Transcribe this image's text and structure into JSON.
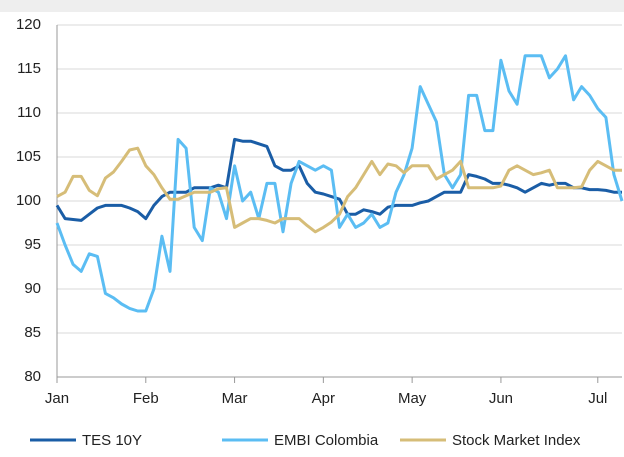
{
  "chart_data": {
    "type": "line",
    "categories": [
      "Jan",
      null,
      null,
      null,
      null,
      null,
      null,
      null,
      null,
      null,
      null,
      "Feb",
      null,
      null,
      null,
      null,
      null,
      null,
      null,
      null,
      null,
      null,
      "Mar",
      null,
      null,
      null,
      null,
      null,
      null,
      null,
      null,
      null,
      null,
      "Apr",
      null,
      null,
      null,
      null,
      null,
      null,
      null,
      null,
      null,
      null,
      "May",
      null,
      null,
      null,
      null,
      null,
      null,
      null,
      null,
      null,
      null,
      "Jun",
      null,
      null,
      null,
      null,
      null,
      null,
      null,
      null,
      null,
      null,
      null,
      "Jul",
      null,
      null,
      null
    ],
    "series": [
      {
        "name": "TES 10Y",
        "color": "#1a5da6",
        "values": [
          99.5,
          98,
          97.9,
          97.8,
          98.5,
          99.2,
          99.5,
          99.5,
          99.5,
          99.2,
          98.8,
          98,
          99.5,
          100.5,
          101,
          101,
          101,
          101.5,
          101.5,
          101.5,
          101.8,
          101.5,
          107,
          106.8,
          106.8,
          106.5,
          106.2,
          104,
          103.5,
          103.5,
          104,
          102,
          101,
          100.8,
          100.5,
          100.2,
          98.5,
          98.5,
          99,
          98.8,
          98.5,
          99.3,
          99.5,
          99.5,
          99.5,
          99.8,
          100,
          100.5,
          101,
          101,
          101,
          103,
          102.8,
          102.5,
          102,
          102,
          101.8,
          101.5,
          101,
          101.5,
          102,
          101.8,
          102,
          102,
          101.5,
          101.5,
          101.3,
          101.3,
          101.2,
          101,
          101
        ]
      },
      {
        "name": "EMBI Colombia",
        "color": "#5bbdf3",
        "values": [
          97.5,
          95,
          92.8,
          92,
          94,
          93.7,
          89.5,
          89,
          88.3,
          87.8,
          87.5,
          87.5,
          90,
          96,
          92,
          107,
          106,
          97,
          95.5,
          101.5,
          101,
          98,
          104,
          100,
          101,
          98,
          102,
          102,
          96.5,
          102,
          104.5,
          104,
          103.5,
          104,
          103.5,
          97,
          98.5,
          97,
          97.5,
          98.5,
          97,
          97.5,
          101,
          103,
          106,
          113,
          111,
          109,
          103,
          101.5,
          103,
          112,
          112,
          108,
          108,
          116,
          112.5,
          111,
          116.5,
          116.5,
          116.5,
          114,
          115,
          116.5,
          111.5,
          113,
          112,
          110.5,
          109.5,
          103,
          100
        ]
      },
      {
        "name": "Stock Market Index",
        "color": "#d6bd78",
        "values": [
          100.5,
          101,
          102.8,
          102.8,
          101.2,
          100.6,
          102.6,
          103.3,
          104.5,
          105.8,
          106,
          104,
          103,
          101.5,
          100.2,
          100.2,
          100.6,
          101,
          101,
          101,
          101.4,
          101.5,
          97,
          97.5,
          98,
          98,
          97.8,
          97.5,
          98,
          98,
          98,
          97.2,
          96.5,
          97,
          97.6,
          98.5,
          100.5,
          101.5,
          103,
          104.5,
          103,
          104.2,
          104,
          103.2,
          104,
          104,
          104,
          102.5,
          103,
          103.5,
          104.5,
          101.5,
          101.5,
          101.5,
          101.5,
          101.7,
          103.5,
          104,
          103.5,
          103,
          103.2,
          103.5,
          101.5,
          101.5,
          101.5,
          101.6,
          103.5,
          104.5,
          104,
          103.5,
          103.5
        ]
      }
    ],
    "ylim": [
      80,
      120
    ],
    "yticks": [
      80,
      85,
      90,
      95,
      100,
      105,
      110,
      115,
      120
    ],
    "grid": true
  }
}
